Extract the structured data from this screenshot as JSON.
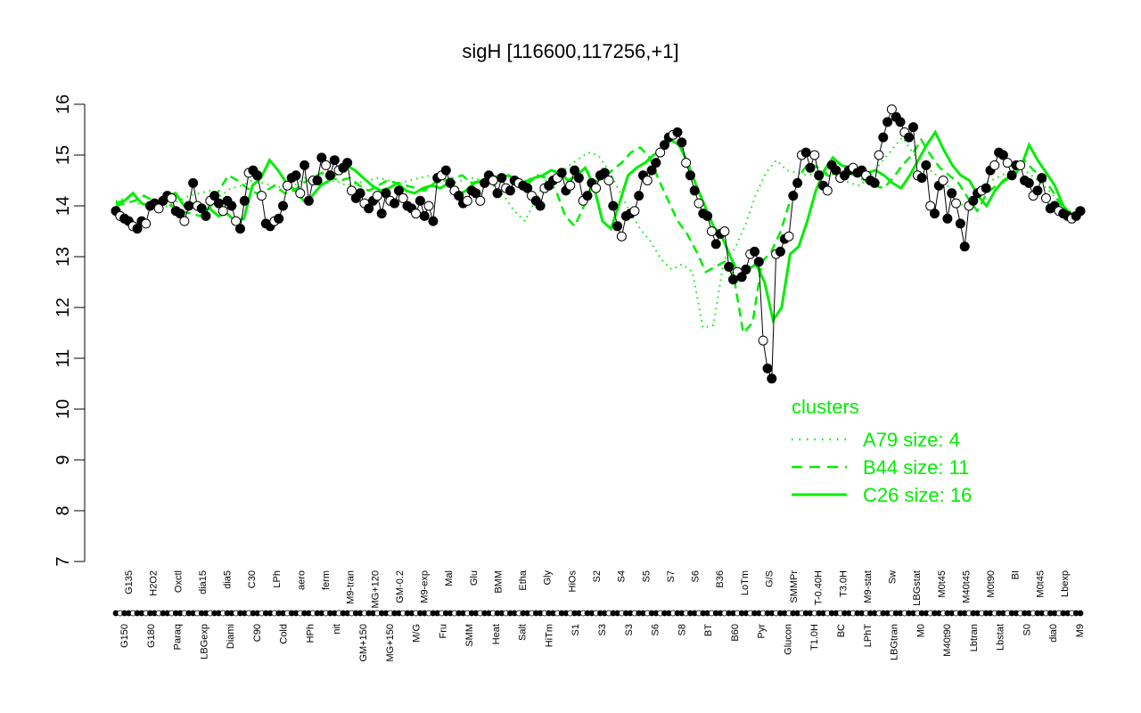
{
  "chart_data": {
    "type": "line",
    "title": "sigH [116600,117256,+1]",
    "xlabel": "",
    "ylabel": "",
    "ylim": [
      7,
      16
    ],
    "yticks": [
      7,
      8,
      9,
      10,
      11,
      12,
      13,
      14,
      15,
      16
    ],
    "x_tick_labels_top": [
      "G135",
      "H2O2",
      "Oxctl",
      "dia15",
      "dia5",
      "C30",
      "LPh",
      "aero",
      "ferm",
      "M9-tran",
      "MG+120",
      "GM-0.2",
      "M9-exp",
      "Mal",
      "Glu",
      "BMM",
      "Etha",
      "Gly",
      "HiOs",
      "S2",
      "S4",
      "S5",
      "S7",
      "S6",
      "B36",
      "LoTm",
      "G/S",
      "SMMPr",
      "T-0.40H",
      "T3.0H",
      "M9-stat",
      "Sw",
      "LBGstat",
      "M0t45",
      "M40t45",
      "M0t90",
      "BI",
      "M0t45",
      "Lbexp"
    ],
    "x_tick_labels_bottom": [
      "G150",
      "G180",
      "Paraq",
      "LBGexp",
      "Diami",
      "C90",
      "Cold",
      "HPh",
      "nit",
      "GM+150",
      "MG+150",
      "M/G",
      "Fru",
      "SMM",
      "Heat",
      "Salt",
      "HiTm",
      "S1",
      "S3",
      "S3",
      "S6",
      "S8",
      "BT",
      "B60",
      "Pyr",
      "Glucon",
      "T1.0H",
      "BC",
      "LPhT",
      "LBGtran",
      "M0",
      "M40t90",
      "Lbtran",
      "Lbstat",
      "S0",
      "dia0",
      "M9"
    ],
    "series": [
      {
        "name": "",
        "kind": "points",
        "values": [
          13.9,
          13.8,
          13.75,
          13.7,
          13.6,
          13.55,
          13.7,
          13.65,
          14.0,
          14.05,
          13.95,
          14.1,
          14.2,
          14.15,
          13.9,
          13.85,
          13.7,
          14.0,
          14.45,
          14.0,
          13.95,
          13.8,
          14.1,
          14.2,
          14.05,
          13.9,
          14.1,
          14.0,
          13.7,
          13.55,
          14.1,
          14.65,
          14.7,
          14.6,
          14.2,
          13.65,
          13.6,
          13.7,
          13.75,
          14.0,
          14.4,
          14.55,
          14.6,
          14.25,
          14.8,
          14.1,
          14.5,
          14.5,
          14.95,
          14.8,
          14.6,
          14.9,
          14.7,
          14.75,
          14.85,
          14.3,
          14.15,
          14.25,
          14.05,
          13.95,
          14.1,
          14.2,
          13.85,
          14.25,
          14.1,
          14.05,
          14.3,
          14.15,
          14.0,
          13.95,
          13.85,
          14.1,
          13.8,
          14.0,
          13.7,
          14.55,
          14.6,
          14.7,
          14.45,
          14.3,
          14.2,
          14.05,
          14.1,
          14.3,
          14.25,
          14.1,
          14.45,
          14.6,
          14.5,
          14.25,
          14.55,
          14.35,
          14.3,
          14.5,
          14.45,
          14.4,
          14.35,
          14.2,
          14.1,
          14.0,
          14.35,
          14.4,
          14.5,
          14.55,
          14.65,
          14.3,
          14.4,
          14.7,
          14.55,
          14.1,
          14.2,
          14.45,
          14.35,
          14.6,
          14.65,
          14.5,
          14.0,
          13.6,
          13.4,
          13.8,
          13.85,
          13.9,
          14.2,
          14.6,
          14.5,
          14.7,
          14.85,
          15.05,
          15.2,
          15.35,
          15.4,
          15.45,
          15.25,
          14.85,
          14.6,
          14.3,
          14.05,
          13.85,
          13.8,
          13.5,
          13.25,
          13.45,
          13.5,
          12.8,
          12.55,
          12.7,
          12.6,
          12.75,
          13.05,
          13.1,
          12.9,
          11.35,
          10.8,
          10.6,
          13.05,
          13.1,
          13.35,
          13.4,
          14.2,
          14.45,
          15.0,
          15.05,
          14.75,
          15.0,
          14.6,
          14.4,
          14.3,
          14.8,
          14.7,
          14.55,
          14.6,
          14.7,
          14.75,
          14.65,
          14.7,
          14.6,
          14.5,
          14.45,
          15.0,
          15.35,
          15.65,
          15.9,
          15.75,
          15.65,
          15.45,
          15.35,
          15.55,
          14.6,
          14.55,
          14.8,
          14.0,
          13.85,
          14.4,
          14.5,
          13.75,
          14.25,
          14.05,
          13.65,
          13.2,
          14.0,
          14.1,
          14.25,
          14.3,
          14.35,
          14.7,
          14.8,
          15.05,
          15.0,
          14.85,
          14.6,
          14.8,
          14.8,
          14.5,
          14.45,
          14.2,
          14.3,
          14.55,
          14.15,
          13.95,
          14.0,
          13.9,
          13.85,
          13.8,
          13.75,
          13.8,
          13.9
        ]
      },
      {
        "name": "C26 size: 16",
        "kind": "solid",
        "values": [
          14.05,
          14.1,
          14.25,
          14.05,
          14.0,
          14.1,
          14.2,
          14.25,
          14.0,
          14.05,
          13.9,
          13.95,
          13.8,
          13.85,
          13.7,
          13.75,
          14.4,
          14.55,
          14.9,
          14.7,
          14.45,
          14.3,
          14.1,
          14.2,
          14.4,
          14.5,
          14.65,
          14.8,
          14.7,
          14.55,
          14.4,
          14.3,
          14.35,
          14.45,
          14.3,
          14.25,
          14.35,
          14.4,
          14.35,
          14.45,
          14.2,
          14.3,
          14.45,
          14.5,
          14.6,
          14.55,
          14.6,
          14.5,
          14.4,
          14.55,
          14.6,
          14.7,
          14.65,
          14.5,
          14.6,
          14.75,
          14.4,
          13.7,
          13.55,
          14.05,
          14.6,
          14.75,
          14.85,
          15.0,
          15.1,
          15.3,
          15.2,
          14.85,
          14.4,
          14.0,
          13.6,
          13.4,
          13.0,
          12.65,
          12.75,
          12.85,
          12.5,
          11.75,
          12.0,
          13.05,
          13.2,
          13.7,
          14.3,
          14.7,
          14.95,
          14.8,
          14.75,
          14.6,
          14.65,
          14.7,
          14.6,
          14.45,
          14.35,
          14.6,
          14.9,
          15.2,
          15.45,
          15.1,
          14.8,
          14.6,
          14.5,
          14.2,
          14.0,
          14.3,
          14.5,
          14.6,
          14.75,
          15.2,
          14.9,
          14.65,
          14.4,
          14.0,
          13.8,
          13.85
        ]
      },
      {
        "name": "B44 size: 11",
        "kind": "dashed",
        "values": [
          14.0,
          14.05,
          14.1,
          14.2,
          14.1,
          14.05,
          14.0,
          13.9,
          13.85,
          13.8,
          13.95,
          14.3,
          14.6,
          14.5,
          14.35,
          14.25,
          14.3,
          14.4,
          14.25,
          14.3,
          14.45,
          14.55,
          14.65,
          14.55,
          14.5,
          14.55,
          14.4,
          14.3,
          14.4,
          14.5,
          14.45,
          14.4,
          14.35,
          14.3,
          14.45,
          14.5,
          14.55,
          14.6,
          14.45,
          14.5,
          14.55,
          14.6,
          14.55,
          14.45,
          14.5,
          14.6,
          14.55,
          14.3,
          13.8,
          13.6,
          14.0,
          14.45,
          14.55,
          14.7,
          14.85,
          15.05,
          15.15,
          14.95,
          14.5,
          14.1,
          13.7,
          13.45,
          13.1,
          12.7,
          12.8,
          12.9,
          12.6,
          11.5,
          11.7,
          12.9,
          13.1,
          13.5,
          14.1,
          14.6,
          14.85,
          14.75,
          14.6,
          14.55,
          14.65,
          14.6,
          14.5,
          14.4,
          14.35,
          14.55,
          14.8,
          15.0,
          15.3,
          15.0,
          14.75,
          14.6,
          14.45,
          14.15,
          13.9,
          14.25,
          14.4,
          14.5,
          14.6,
          14.9,
          14.7,
          14.55,
          14.3,
          14.0,
          13.85,
          13.9
        ]
      },
      {
        "name": "A79 size: 4",
        "kind": "dotted",
        "values": [
          14.1,
          14.15,
          14.05,
          14.0,
          13.95,
          14.0,
          14.1,
          14.2,
          14.25,
          14.3,
          14.2,
          14.35,
          14.4,
          14.5,
          14.45,
          14.4,
          14.35,
          14.4,
          14.55,
          14.5,
          14.45,
          14.5,
          14.4,
          14.45,
          14.5,
          14.55,
          14.5,
          14.45,
          14.5,
          14.55,
          14.6,
          14.5,
          14.45,
          14.5,
          14.55,
          14.5,
          14.4,
          14.2,
          13.9,
          13.7,
          14.1,
          14.5,
          14.6,
          14.75,
          14.9,
          15.05,
          15.0,
          14.7,
          14.3,
          13.9,
          13.55,
          13.3,
          12.95,
          12.75,
          12.85,
          12.7,
          11.6,
          11.65,
          12.95,
          13.15,
          13.6,
          14.2,
          14.65,
          14.9,
          14.7,
          14.65,
          14.6,
          14.7,
          14.65,
          14.55,
          14.45,
          14.4,
          14.6,
          14.85,
          15.1,
          15.35,
          15.05,
          14.8,
          14.65,
          14.5,
          14.2,
          13.95,
          14.3,
          14.45,
          14.55,
          14.65,
          14.8,
          14.65,
          14.5,
          14.3,
          14.05,
          13.9,
          13.95
        ]
      }
    ],
    "legend": {
      "title": "clusters",
      "position": "bottom-right",
      "entries": [
        "A79 size: 4",
        "B44 size: 11",
        "C26 size: 16"
      ]
    },
    "colors": {
      "points": "#000000",
      "clusters": "#00ee00",
      "axis": "#000000"
    }
  }
}
